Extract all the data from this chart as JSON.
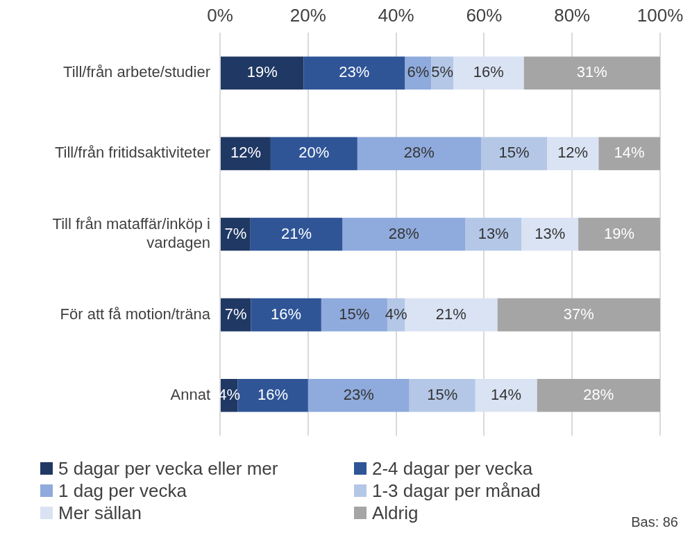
{
  "chart_data": {
    "type": "bar",
    "orientation": "horizontal",
    "stacked": true,
    "categories": [
      "Till/från arbete/studier",
      "Till/från fritidsaktiviteter",
      "Till från mataffär/inköp i vardagen",
      "För att få motion/träna",
      "Annat"
    ],
    "series": [
      {
        "name": "5 dagar per vecka eller mer",
        "color": "#203864",
        "values": [
          19,
          11.5,
          6.9,
          7,
          4
        ],
        "value_labels": [
          "19%",
          "12%",
          "7%",
          "7%",
          "4%"
        ]
      },
      {
        "name": "2-4 dagar per vecka",
        "color": "#2f5597",
        "values": [
          23,
          19.7,
          20.9,
          16,
          16
        ],
        "value_labels": [
          "23%",
          "20%",
          "21%",
          "16%",
          "16%"
        ]
      },
      {
        "name": "1 dag per vecka",
        "color": "#8faadc",
        "values": [
          6,
          28.1,
          27.9,
          15,
          23
        ],
        "value_labels": [
          "6%",
          "28%",
          "28%",
          "15%",
          "23%"
        ]
      },
      {
        "name": "1-3 dagar per månad",
        "color": "#b4c7e7",
        "values": [
          5,
          15,
          12.8,
          4,
          15
        ],
        "value_labels": [
          "5%",
          "15%",
          "13%",
          "4%",
          "15%"
        ]
      },
      {
        "name": "Mer sällan",
        "color": "#dae3f3",
        "values": [
          16,
          11.7,
          12.9,
          21,
          14
        ],
        "value_labels": [
          "16%",
          "12%",
          "13%",
          "21%",
          "14%"
        ]
      },
      {
        "name": "Aldrig",
        "color": "#a5a5a5",
        "values": [
          31,
          14,
          18.6,
          37,
          28
        ],
        "value_labels": [
          "31%",
          "14%",
          "19%",
          "37%",
          "28%"
        ]
      }
    ],
    "xlim": [
      0,
      100
    ],
    "xticks": [
      {
        "value": 0,
        "label": "0%"
      },
      {
        "value": 20,
        "label": "20%"
      },
      {
        "value": 40,
        "label": "40%"
      },
      {
        "value": 60,
        "label": "60%"
      },
      {
        "value": 80,
        "label": "80%"
      },
      {
        "value": 100,
        "label": "100%"
      }
    ],
    "grid": "x",
    "legend": "bottom",
    "annotations": [
      "Bas: 86"
    ]
  }
}
